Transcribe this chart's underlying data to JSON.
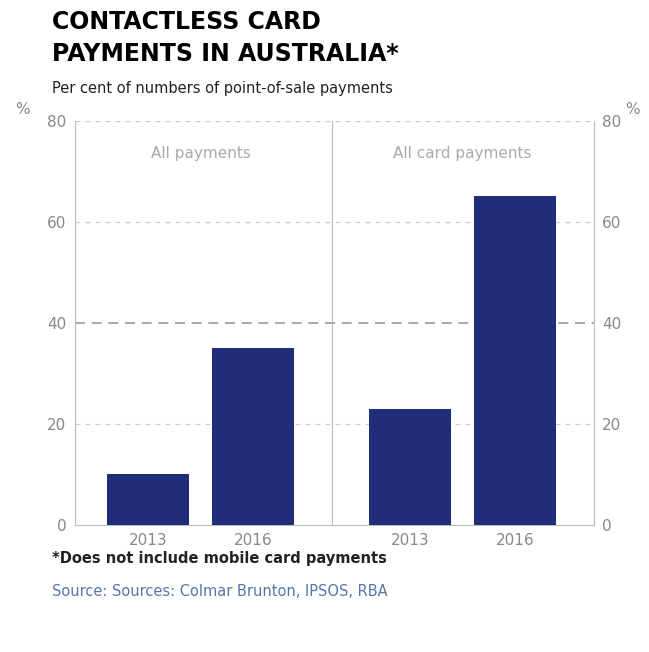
{
  "title_line1": "CONTACTLESS CARD",
  "title_line2": "PAYMENTS IN AUSTRALIA*",
  "subtitle": "Per cent of numbers of point-of-sale payments",
  "groups": [
    "All payments",
    "All card payments"
  ],
  "years": [
    "2013",
    "2016"
  ],
  "values": [
    [
      10,
      35
    ],
    [
      23,
      65
    ]
  ],
  "bar_color": "#1f2d7b",
  "ylim": [
    0,
    80
  ],
  "yticks": [
    0,
    20,
    40,
    60,
    80
  ],
  "dashed_line_y": 40,
  "light_gridlines": [
    20,
    60,
    80
  ],
  "footnote1": "*Does not include mobile card payments",
  "footnote2": "Source: Sources: Colmar Brunton, IPSOS, RBA",
  "bg_color": "#ffffff",
  "tick_label_color": "#888888",
  "group_label_color": "#aaaaaa",
  "title_color": "#000000",
  "subtitle_color": "#222222",
  "footnote1_color": "#222222",
  "footnote2_color": "#5577aa",
  "spine_color": "#bbbbbb",
  "light_grid_color": "#cccccc",
  "dark_dash_color": "#999999"
}
